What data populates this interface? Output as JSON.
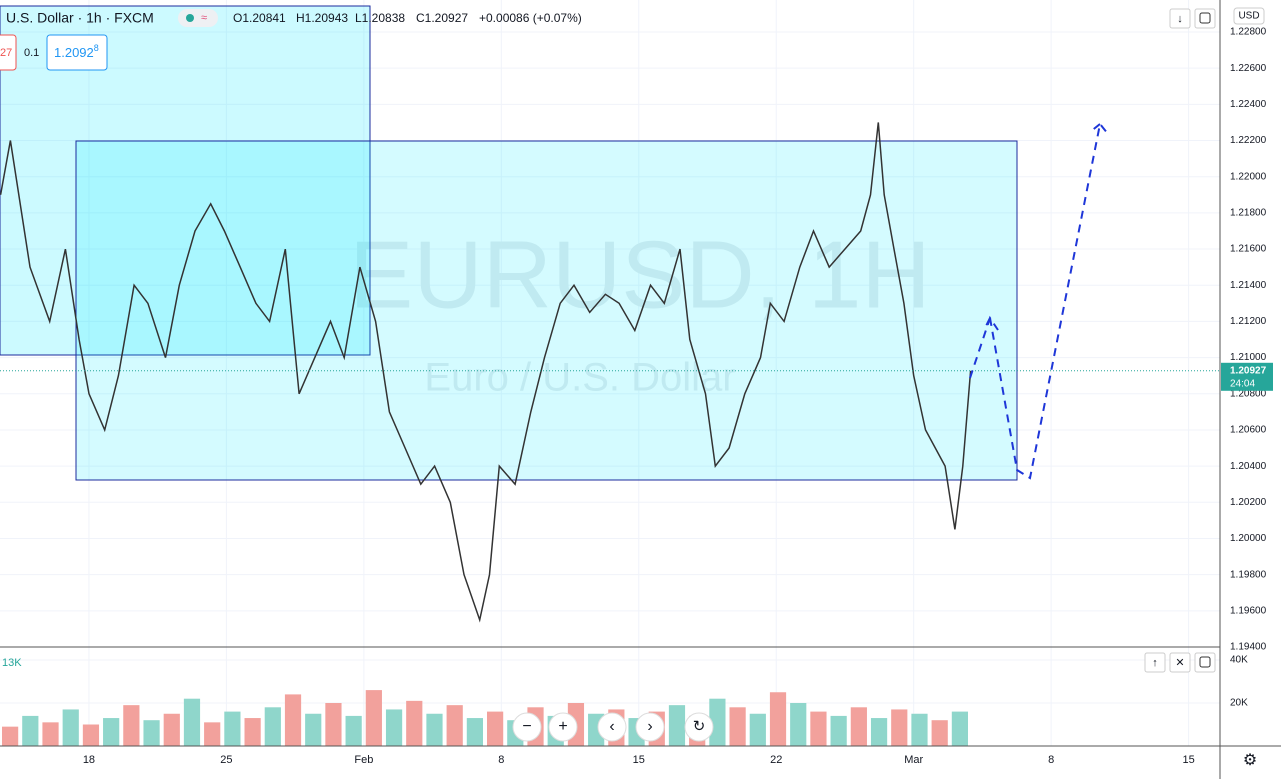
{
  "header": {
    "symbol": "U.S. Dollar · 1h · FXCM",
    "open": "O1.20841",
    "high": "H1.20943",
    "low": "L1.20838",
    "close": "C1.20927",
    "change": "+0.00086 (+0.07%)",
    "sell_price": "27",
    "spread": "0.1",
    "buy_price": "1.2092",
    "buy_price_sup": "8",
    "currency": "USD",
    "watermark": "EURUSD, 1H",
    "watermark_sub": "Euro / U.S. Dollar"
  },
  "chart_data": {
    "type": "line",
    "color": "#333333",
    "x": [
      -4.5,
      -4,
      -3,
      -2,
      -1.2,
      -0.5,
      0,
      0.8,
      1.5,
      2.3,
      3,
      3.9,
      4.6,
      5.4,
      6.2,
      6.9,
      7.7,
      8.5,
      9.2,
      10,
      10.7,
      11.5,
      12.3,
      13,
      13.8,
      14.6,
      15.3,
      16.1,
      16.9,
      17.6,
      18.4,
      19.1,
      19.9,
      20.4,
      20.9,
      21.7,
      22.5,
      23.2,
      24,
      24.7,
      25.5,
      26.3,
      27,
      27.8,
      28.6,
      29.3,
      30.1,
      30.6,
      31.4,
      31.9,
      32.6,
      33.4,
      34.2,
      34.7,
      35.4,
      36.2,
      36.9,
      37.7,
      38.5,
      39.3,
      39.8,
      40.2,
      40.5,
      41,
      41.5,
      42,
      42.6,
      43.1,
      43.6,
      44.1,
      44.5,
      44.9
    ],
    "values": [
      1.219,
      1.222,
      1.215,
      1.212,
      1.216,
      1.211,
      1.208,
      1.206,
      1.209,
      1.214,
      1.213,
      1.21,
      1.214,
      1.217,
      1.2185,
      1.217,
      1.215,
      1.213,
      1.212,
      1.216,
      1.208,
      1.21,
      1.212,
      1.21,
      1.215,
      1.212,
      1.207,
      1.205,
      1.203,
      1.204,
      1.202,
      1.198,
      1.1955,
      1.198,
      1.204,
      1.203,
      1.207,
      1.21,
      1.213,
      1.214,
      1.2125,
      1.2135,
      1.213,
      1.2115,
      1.214,
      1.213,
      1.216,
      1.211,
      1.208,
      1.204,
      1.205,
      1.208,
      1.21,
      1.213,
      1.212,
      1.215,
      1.217,
      1.215,
      1.216,
      1.217,
      1.219,
      1.223,
      1.219,
      1.216,
      1.213,
      1.209,
      1.206,
      1.205,
      1.204,
      1.2005,
      1.204,
      1.20927
    ],
    "xlim": [
      -4.53,
      57.6
    ],
    "ylim": [
      1.194,
      1.228
    ],
    "xticks": [
      {
        "value": 0,
        "label": "18"
      },
      {
        "value": 7,
        "label": "25"
      },
      {
        "value": 14,
        "label": "Feb"
      },
      {
        "value": 21,
        "label": "8"
      },
      {
        "value": 28,
        "label": "15"
      },
      {
        "value": 35,
        "label": "22"
      },
      {
        "value": 42,
        "label": "Mar"
      },
      {
        "value": 49,
        "label": "8"
      },
      {
        "value": 56,
        "label": "15"
      }
    ],
    "yticks": [
      {
        "value": 1.228,
        "label": "1.22800"
      },
      {
        "value": 1.226,
        "label": "1.22600"
      },
      {
        "value": 1.224,
        "label": "1.22400"
      },
      {
        "value": 1.222,
        "label": "1.22200"
      },
      {
        "value": 1.22,
        "label": "1.22000"
      },
      {
        "value": 1.218,
        "label": "1.21800"
      },
      {
        "value": 1.216,
        "label": "1.21600"
      },
      {
        "value": 1.214,
        "label": "1.21400"
      },
      {
        "value": 1.212,
        "label": "1.21200"
      },
      {
        "value": 1.21,
        "label": "1.21000"
      },
      {
        "value": 1.208,
        "label": "1.20800"
      },
      {
        "value": 1.206,
        "label": "1.20600"
      },
      {
        "value": 1.204,
        "label": "1.20400"
      },
      {
        "value": 1.202,
        "label": "1.20200"
      },
      {
        "value": 1.2,
        "label": "1.20000"
      },
      {
        "value": 1.198,
        "label": "1.19800"
      },
      {
        "value": 1.196,
        "label": "1.19600"
      },
      {
        "value": 1.194,
        "label": "1.19400"
      }
    ],
    "last_price": {
      "value": 1.20927,
      "label": "1.20927"
    },
    "countdown": "24:04",
    "grid": true,
    "volume": {
      "label": "13K",
      "colors": [
        "#f2a19c",
        "#8fd6cb"
      ],
      "ylim": [
        0,
        40000
      ],
      "yticks": [
        {
          "value": 40000,
          "label": "40K"
        },
        {
          "value": 20000,
          "label": "20K"
        }
      ],
      "values": [
        9000,
        14000,
        11000,
        17000,
        10000,
        13000,
        19000,
        12000,
        15000,
        22000,
        11000,
        16000,
        13000,
        18000,
        24000,
        15000,
        20000,
        14000,
        26000,
        17000,
        21000,
        15000,
        19000,
        13000,
        16000,
        12000,
        18000,
        14000,
        20000,
        15000,
        17000,
        13000,
        16000,
        19000,
        14000,
        22000,
        18000,
        15000,
        25000,
        20000,
        16000,
        14000,
        18000,
        13000,
        17000,
        15000,
        12000,
        16000
      ]
    }
  }
}
